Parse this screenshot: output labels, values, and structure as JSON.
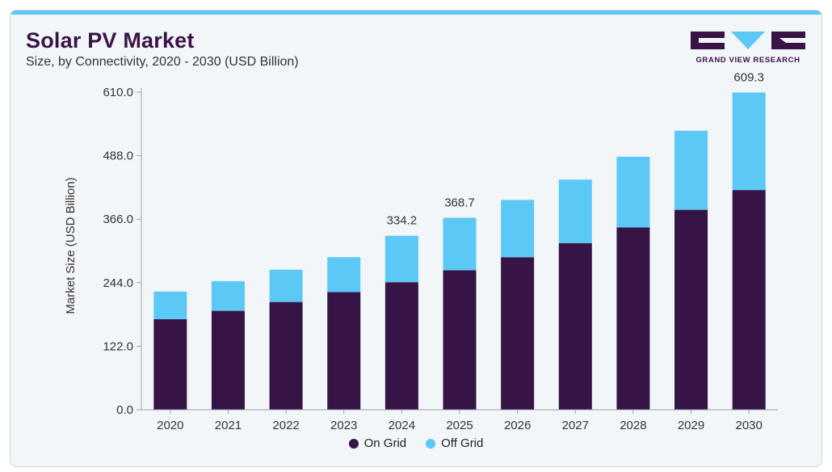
{
  "header": {
    "title": "Solar PV Market",
    "subtitle": "Size, by Connectivity, 2020 - 2030 (USD Billion)",
    "logo_text": "GRAND VIEW RESEARCH"
  },
  "colors": {
    "on_grid": "#361446",
    "off_grid": "#5bc8f5",
    "brand": "#3a1345"
  },
  "chart_data": {
    "type": "bar",
    "stacked": true,
    "categories": [
      "2020",
      "2021",
      "2022",
      "2023",
      "2024",
      "2025",
      "2026",
      "2027",
      "2028",
      "2029",
      "2030"
    ],
    "series": [
      {
        "name": "On Grid",
        "values": [
          174,
          190,
          207,
          226,
          245,
          268,
          293,
          320,
          350,
          384,
          422
        ]
      },
      {
        "name": "Off Grid",
        "values": [
          53,
          57,
          62,
          67,
          89.2,
          100.7,
          110,
          122,
          136,
          152,
          187.3
        ]
      }
    ],
    "totals_labels": [
      {
        "category": "2024",
        "text": "334.2"
      },
      {
        "category": "2025",
        "text": "368.7"
      },
      {
        "category": "2030",
        "text": "609.3"
      }
    ],
    "ylabel": "Market Size (USD Billion)",
    "yticks": [
      "0.0",
      "122.0",
      "244.0",
      "366.0",
      "488.0",
      "610.0"
    ],
    "ylim": [
      0,
      610
    ],
    "grid": false,
    "legend_position": "bottom-center"
  }
}
